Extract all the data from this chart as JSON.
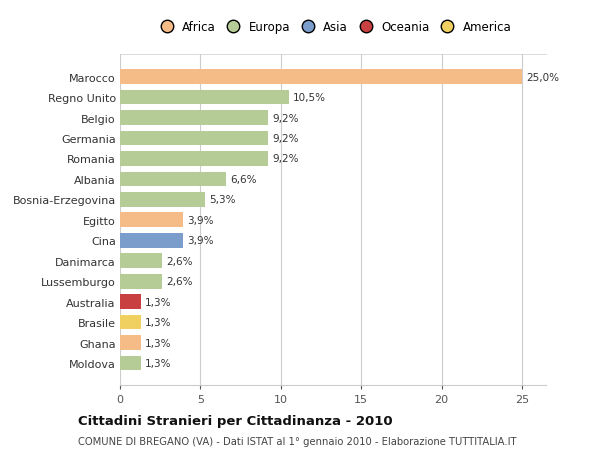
{
  "countries": [
    "Marocco",
    "Regno Unito",
    "Belgio",
    "Germania",
    "Romania",
    "Albania",
    "Bosnia-Erzegovina",
    "Egitto",
    "Cina",
    "Danimarca",
    "Lussemburgo",
    "Australia",
    "Brasile",
    "Ghana",
    "Moldova"
  ],
  "values": [
    25.0,
    10.5,
    9.2,
    9.2,
    9.2,
    6.6,
    5.3,
    3.9,
    3.9,
    2.6,
    2.6,
    1.3,
    1.3,
    1.3,
    1.3
  ],
  "labels": [
    "25,0%",
    "10,5%",
    "9,2%",
    "9,2%",
    "9,2%",
    "6,6%",
    "5,3%",
    "3,9%",
    "3,9%",
    "2,6%",
    "2,6%",
    "1,3%",
    "1,3%",
    "1,3%",
    "1,3%"
  ],
  "colors": [
    "#f5bc87",
    "#b5cc96",
    "#b5cc96",
    "#b5cc96",
    "#b5cc96",
    "#b5cc96",
    "#b5cc96",
    "#f5bc87",
    "#7a9dcc",
    "#b5cc96",
    "#b5cc96",
    "#c94040",
    "#f0d060",
    "#f5bc87",
    "#b5cc96"
  ],
  "continent_colors": {
    "Africa": "#f5bc87",
    "Europa": "#b5cc96",
    "Asia": "#7a9dcc",
    "Oceania": "#c94040",
    "America": "#f0d060"
  },
  "continents": [
    "Africa",
    "Europa",
    "Asia",
    "Oceania",
    "America"
  ],
  "title": "Cittadini Stranieri per Cittadinanza - 2010",
  "subtitle": "COMUNE DI BREGANO (VA) - Dati ISTAT al 1° gennaio 2010 - Elaborazione TUTTITALIA.IT",
  "xlim": [
    0,
    26.5
  ],
  "xticks": [
    0,
    5,
    10,
    15,
    20,
    25
  ],
  "background_color": "#ffffff",
  "plot_bg_color": "#ffffff",
  "grid_color": "#cccccc"
}
